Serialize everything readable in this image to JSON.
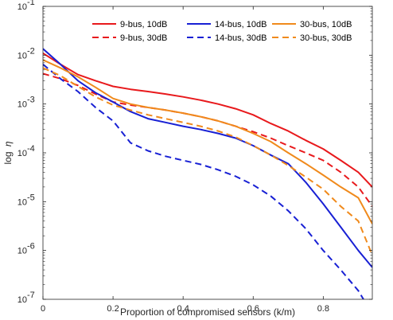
{
  "chart_data": {
    "type": "line",
    "title": "",
    "xlabel": "Proportion of compromised sensors (k/m)",
    "ylabel": "log",
    "ylabel_symbol": "η",
    "xlim": [
      0,
      0.94
    ],
    "ylim": [
      1e-07,
      0.1
    ],
    "yscale": "log",
    "grid": false,
    "legend_position": "top-right",
    "x_ticks": [
      0,
      0.2,
      0.4,
      0.6,
      0.8
    ],
    "x_tick_labels": [
      "0",
      "0.2",
      "0.4",
      "0.6",
      "0.8"
    ],
    "y_ticks": [
      1e-07,
      1e-06,
      1e-05,
      0.0001,
      0.001,
      0.01,
      0.1
    ],
    "y_tick_bases": [
      "10",
      "10",
      "10",
      "10",
      "10",
      "10",
      "10"
    ],
    "y_tick_exponents": [
      "-7",
      "-6",
      "-5",
      "-4",
      "-3",
      "-2",
      "-1"
    ],
    "series": [
      {
        "name": "9-bus, 10dB",
        "color": "#e8191c",
        "dash": "solid",
        "x": [
          0,
          0.05,
          0.1,
          0.15,
          0.2,
          0.25,
          0.3,
          0.35,
          0.4,
          0.45,
          0.5,
          0.55,
          0.6,
          0.65,
          0.7,
          0.75,
          0.8,
          0.85,
          0.9,
          0.94
        ],
        "y": [
          0.011,
          0.0065,
          0.004,
          0.003,
          0.0023,
          0.002,
          0.0018,
          0.0016,
          0.0014,
          0.0012,
          0.001,
          0.0008,
          0.0006,
          0.0004,
          0.00028,
          0.00018,
          0.00012,
          7e-05,
          4e-05,
          2e-05
        ]
      },
      {
        "name": "9-bus, 30dB",
        "color": "#e8191c",
        "dash": "dashed",
        "x": [
          0,
          0.05,
          0.1,
          0.15,
          0.2,
          0.25,
          0.3,
          0.35,
          0.4,
          0.45,
          0.5,
          0.55,
          0.6,
          0.65,
          0.7,
          0.75,
          0.8,
          0.85,
          0.9,
          0.94
        ],
        "y": [
          0.0042,
          0.0033,
          0.0024,
          0.0016,
          0.0011,
          0.00095,
          0.00085,
          0.00075,
          0.00065,
          0.00055,
          0.00045,
          0.00035,
          0.00027,
          0.0002,
          0.00014,
          0.0001,
          7e-05,
          4e-05,
          2e-05,
          8e-06
        ]
      },
      {
        "name": "14-bus, 10dB",
        "color": "#1820d4",
        "dash": "solid",
        "x": [
          0,
          0.05,
          0.1,
          0.15,
          0.2,
          0.25,
          0.3,
          0.35,
          0.4,
          0.45,
          0.5,
          0.55,
          0.6,
          0.65,
          0.7,
          0.75,
          0.8,
          0.85,
          0.9,
          0.94
        ],
        "y": [
          0.0135,
          0.0065,
          0.003,
          0.0017,
          0.0011,
          0.0007,
          0.0005,
          0.00042,
          0.00035,
          0.0003,
          0.00025,
          0.0002,
          0.00014,
          9e-05,
          6e-05,
          2.5e-05,
          9e-06,
          3e-06,
          1e-06,
          4.5e-07
        ]
      },
      {
        "name": "14-bus, 30dB",
        "color": "#1820d4",
        "dash": "dashed",
        "x": [
          0,
          0.05,
          0.1,
          0.15,
          0.2,
          0.25,
          0.3,
          0.35,
          0.4,
          0.45,
          0.5,
          0.55,
          0.6,
          0.65,
          0.7,
          0.75,
          0.8,
          0.85,
          0.9,
          0.94
        ],
        "y": [
          0.0065,
          0.0033,
          0.0018,
          0.00085,
          0.00045,
          0.00016,
          0.00011,
          8.5e-05,
          7e-05,
          5.8e-05,
          4.5e-05,
          3.3e-05,
          2.2e-05,
          1.3e-05,
          6.5e-06,
          2.8e-06,
          1e-06,
          4e-07,
          1.5e-07,
          5e-08
        ]
      },
      {
        "name": "30-bus, 10dB",
        "color": "#f08a1c",
        "dash": "solid",
        "x": [
          0,
          0.05,
          0.1,
          0.15,
          0.2,
          0.25,
          0.3,
          0.35,
          0.4,
          0.45,
          0.5,
          0.55,
          0.6,
          0.65,
          0.7,
          0.75,
          0.8,
          0.85,
          0.9,
          0.94
        ],
        "y": [
          0.008,
          0.0055,
          0.0036,
          0.0022,
          0.0013,
          0.001,
          0.00085,
          0.00075,
          0.00065,
          0.00055,
          0.00045,
          0.00035,
          0.00025,
          0.00017,
          0.0001,
          6e-05,
          3.5e-05,
          2e-05,
          1.2e-05,
          3.5e-06
        ]
      },
      {
        "name": "30-bus, 30dB",
        "color": "#f08a1c",
        "dash": "dashed",
        "x": [
          0,
          0.05,
          0.1,
          0.15,
          0.2,
          0.25,
          0.3,
          0.35,
          0.4,
          0.45,
          0.5,
          0.55,
          0.6,
          0.65,
          0.7,
          0.75,
          0.8,
          0.85,
          0.9,
          0.94
        ],
        "y": [
          0.0055,
          0.0038,
          0.0023,
          0.0014,
          0.00095,
          0.00075,
          0.0006,
          0.0005,
          0.00042,
          0.00035,
          0.00028,
          0.00021,
          0.00014,
          9e-05,
          5.5e-05,
          3.2e-05,
          1.8e-05,
          8e-06,
          4e-06,
          8e-07
        ]
      }
    ]
  }
}
